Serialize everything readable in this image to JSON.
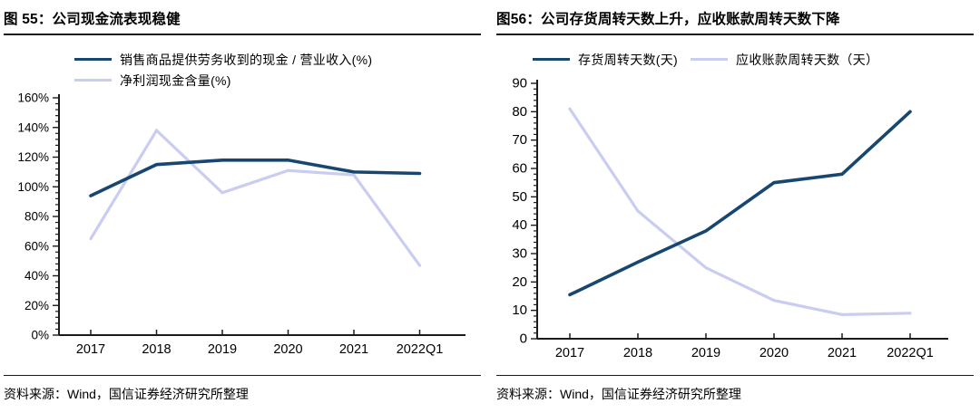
{
  "colors": {
    "series_dark_navy": "#174770",
    "series_light_lavender": "#c9cdf0",
    "axis": "#1a1a1a",
    "text": "#000000"
  },
  "chart_data": [
    {
      "type": "line",
      "name": "cash-flow-chart",
      "title": "图 55：公司现金流表现稳健",
      "source": "资料来源：Wind，国信证券经济研究所整理",
      "categories": [
        "2017",
        "2018",
        "2019",
        "2020",
        "2021",
        "2022Q1"
      ],
      "series": [
        {
          "name": "销售商品提供劳务收到的现金 / 营业收入(%)",
          "color": "#174770",
          "values": [
            94,
            115,
            118,
            118,
            110,
            109
          ]
        },
        {
          "name": "净利润现金含量(%)",
          "color": "#c9cdf0",
          "values": [
            65,
            138,
            96,
            111,
            108,
            47
          ]
        }
      ],
      "ylim": [
        0,
        160
      ],
      "ytick_step": 20,
      "ytick_minor_step": 4,
      "ytick_format": "percent",
      "grid": false,
      "legend_position": "top",
      "legend_layout": "stacked"
    },
    {
      "type": "line",
      "name": "turnover-days-chart",
      "title": "图56：公司存货周转天数上升，应收账款周转天数下降",
      "source": "资料来源：Wind，国信证券经济研究所整理",
      "categories": [
        "2017",
        "2018",
        "2019",
        "2020",
        "2021",
        "2022Q1"
      ],
      "series": [
        {
          "name": "存货周转天数(天)",
          "color": "#174770",
          "values": [
            15.5,
            27,
            38,
            55,
            58,
            80
          ]
        },
        {
          "name": "应收账款周转天数（天）",
          "color": "#c9cdf0",
          "values": [
            81,
            45,
            25,
            13.5,
            8.5,
            9
          ]
        }
      ],
      "ylim": [
        0,
        90
      ],
      "ytick_step": 10,
      "ytick_minor_step": 2,
      "ytick_format": "number",
      "grid": false,
      "legend_position": "top",
      "legend_layout": "row"
    }
  ]
}
